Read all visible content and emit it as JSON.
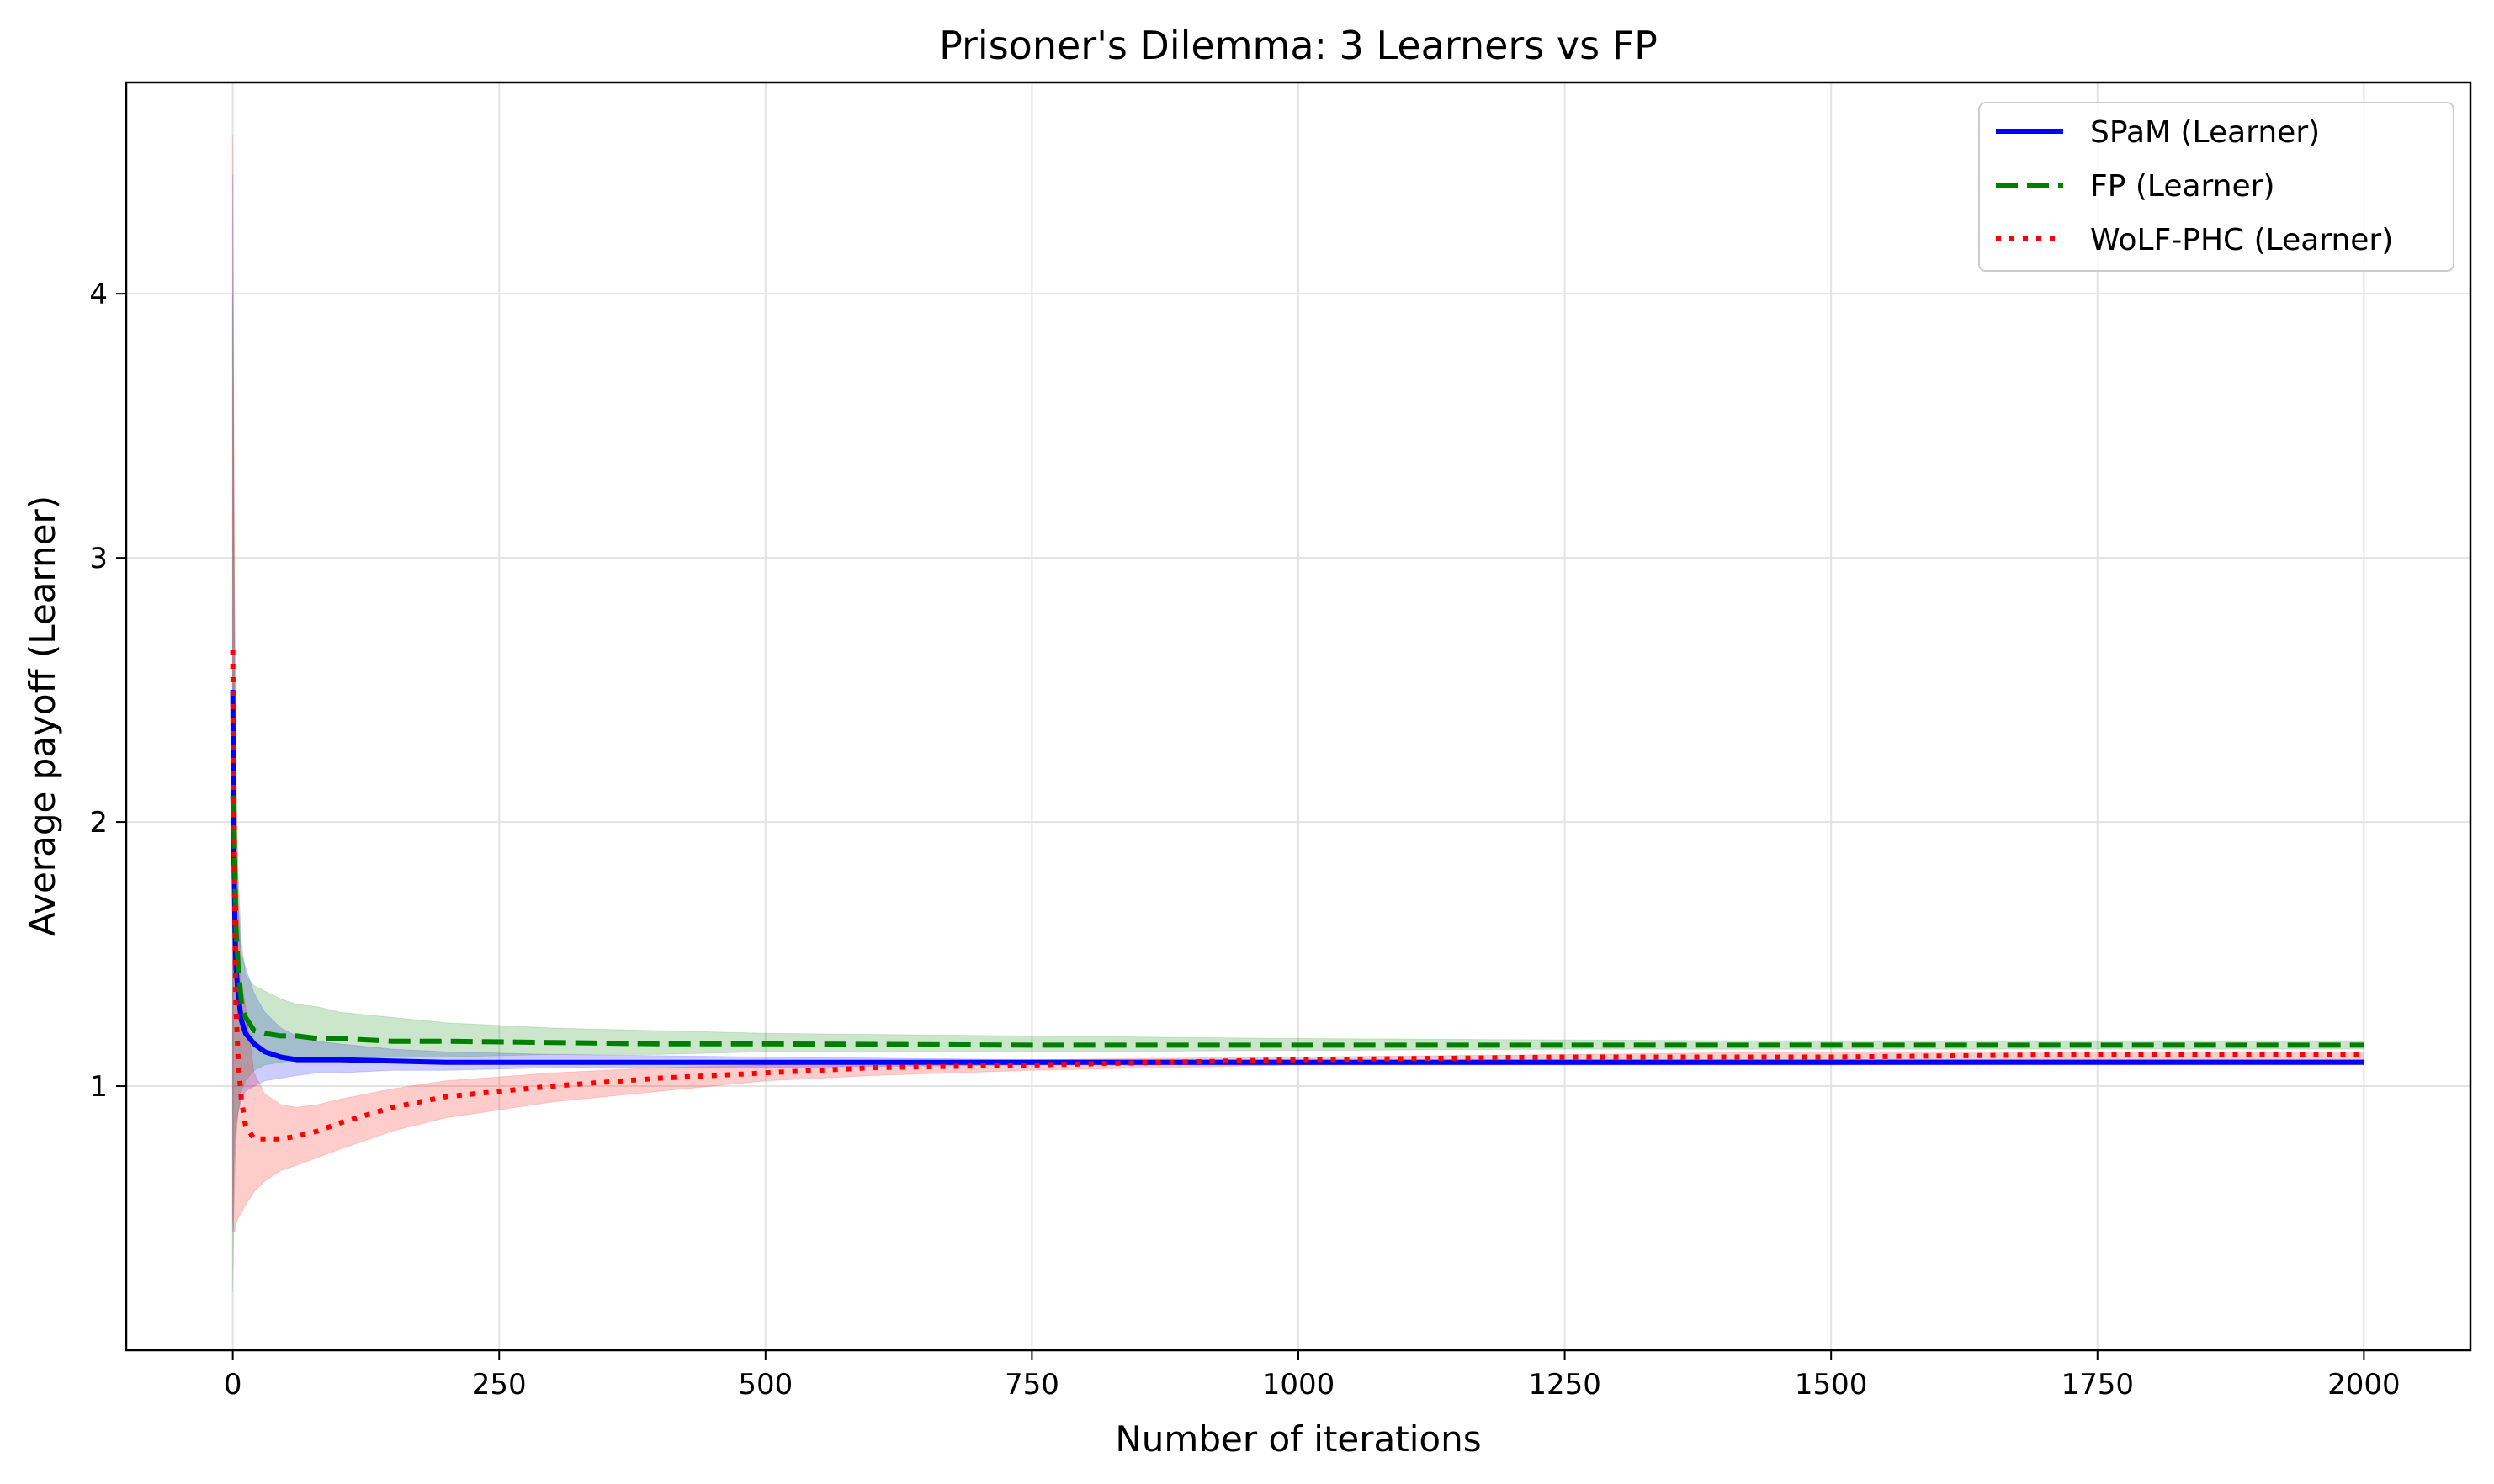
{
  "chart_data": {
    "type": "line",
    "title": "Prisoner's Dilemma: 3 Learners vs FP",
    "xlabel": "Number of iterations",
    "ylabel": "Average payoff (Learner)",
    "xlim": [
      -100,
      2100
    ],
    "ylim": [
      0.0,
      4.8
    ],
    "xticks": [
      0,
      250,
      500,
      750,
      1000,
      1250,
      1500,
      1750,
      2000
    ],
    "yticks": [
      1,
      2,
      3,
      4
    ],
    "grid": true,
    "legend_position": "top-right",
    "series": [
      {
        "name": "SPaM (Learner)",
        "color": "#0000ff",
        "line_style": "solid",
        "x": [
          0,
          1,
          2,
          3,
          5,
          8,
          12,
          20,
          30,
          45,
          60,
          80,
          100,
          150,
          200,
          300,
          400,
          500,
          750,
          1000,
          1250,
          1500,
          1750,
          2000
        ],
        "y": [
          2.5,
          1.9,
          1.6,
          1.45,
          1.35,
          1.25,
          1.2,
          1.16,
          1.13,
          1.11,
          1.1,
          1.1,
          1.1,
          1.095,
          1.09,
          1.09,
          1.09,
          1.09,
          1.09,
          1.09,
          1.09,
          1.09,
          1.09,
          1.09
        ],
        "band_low": [
          0.45,
          0.7,
          0.8,
          0.85,
          0.9,
          0.95,
          0.98,
          1.0,
          1.02,
          1.03,
          1.04,
          1.05,
          1.05,
          1.06,
          1.06,
          1.07,
          1.07,
          1.07,
          1.08,
          1.08,
          1.08,
          1.08,
          1.085,
          1.085
        ],
        "band_high": [
          4.45,
          3.0,
          2.4,
          2.0,
          1.7,
          1.5,
          1.45,
          1.35,
          1.28,
          1.22,
          1.19,
          1.17,
          1.16,
          1.14,
          1.13,
          1.12,
          1.115,
          1.11,
          1.1,
          1.1,
          1.1,
          1.1,
          1.1,
          1.1
        ]
      },
      {
        "name": "FP (Learner)",
        "color": "#008000",
        "line_style": "dashed",
        "x": [
          0,
          1,
          2,
          3,
          5,
          8,
          12,
          20,
          30,
          45,
          60,
          80,
          100,
          150,
          200,
          300,
          400,
          500,
          750,
          1000,
          1250,
          1500,
          1750,
          2000
        ],
        "y": [
          2.1,
          2.0,
          1.8,
          1.6,
          1.45,
          1.32,
          1.26,
          1.21,
          1.2,
          1.19,
          1.19,
          1.18,
          1.18,
          1.17,
          1.17,
          1.165,
          1.16,
          1.16,
          1.155,
          1.155,
          1.155,
          1.155,
          1.155,
          1.155
        ],
        "band_low": [
          0.22,
          0.5,
          0.7,
          0.8,
          0.9,
          0.98,
          1.02,
          1.06,
          1.08,
          1.09,
          1.1,
          1.1,
          1.1,
          1.11,
          1.11,
          1.12,
          1.12,
          1.13,
          1.13,
          1.135,
          1.14,
          1.14,
          1.14,
          1.14
        ],
        "band_high": [
          4.0,
          3.2,
          2.6,
          2.2,
          1.8,
          1.55,
          1.42,
          1.38,
          1.36,
          1.33,
          1.31,
          1.3,
          1.28,
          1.26,
          1.24,
          1.22,
          1.21,
          1.2,
          1.19,
          1.18,
          1.175,
          1.17,
          1.17,
          1.17
        ]
      },
      {
        "name": "WoLF-PHC (Learner)",
        "color": "#ff0000",
        "line_style": "dotted",
        "x": [
          0,
          1,
          2,
          3,
          5,
          8,
          12,
          20,
          30,
          45,
          60,
          80,
          100,
          150,
          200,
          300,
          400,
          500,
          600,
          750,
          1000,
          1250,
          1500,
          1750,
          2000
        ],
        "y": [
          2.65,
          2.1,
          1.6,
          1.3,
          1.1,
          0.95,
          0.85,
          0.8,
          0.8,
          0.8,
          0.81,
          0.83,
          0.86,
          0.92,
          0.96,
          1.0,
          1.03,
          1.05,
          1.07,
          1.08,
          1.1,
          1.11,
          1.11,
          1.12,
          1.12
        ],
        "band_low": [
          0.5,
          0.45,
          0.45,
          0.48,
          0.5,
          0.52,
          0.55,
          0.6,
          0.64,
          0.68,
          0.7,
          0.73,
          0.76,
          0.83,
          0.88,
          0.94,
          0.98,
          1.02,
          1.04,
          1.06,
          1.08,
          1.09,
          1.1,
          1.1,
          1.1
        ],
        "band_high": [
          4.6,
          3.5,
          2.7,
          2.2,
          1.7,
          1.4,
          1.3,
          1.05,
          0.97,
          0.93,
          0.92,
          0.93,
          0.95,
          0.99,
          1.02,
          1.05,
          1.07,
          1.08,
          1.09,
          1.1,
          1.11,
          1.12,
          1.13,
          1.13,
          1.13
        ]
      }
    ]
  }
}
